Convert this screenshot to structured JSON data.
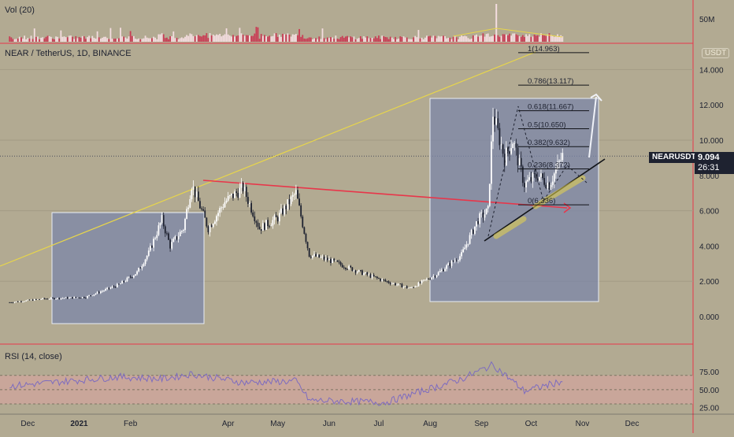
{
  "symbol_title": "NEAR / TetherUS, 1D, BINANCE",
  "volume_label": "Vol (20)",
  "volume_axis_label": "50M",
  "rsi_label": "RSI (14, close)",
  "currency_badge": "USDT",
  "price_tag": {
    "symbol": "NEARUSDT",
    "price": "9.094",
    "countdown": "26:31"
  },
  "colors": {
    "background": "#b2aa92",
    "up_candle": "#ffffff",
    "down_candle": "#1e2230",
    "resistance_line": "#e8364a",
    "trend_line": "#e8d64a",
    "box_fill": "#7b86a8",
    "rsi_line": "#7d6cc0"
  },
  "chart_data": [
    {
      "type": "candlestick",
      "title": "NEAR / TetherUS, 1D, BINANCE",
      "y_ticks": [
        "14.000",
        "12.000",
        "10.000",
        "8.000",
        "6.000",
        "4.000",
        "2.000",
        "0.000"
      ],
      "ylim": [
        -0.5,
        15.5
      ],
      "x_ticks": [
        "Dec",
        "2021",
        "Feb",
        "Apr",
        "May",
        "Jun",
        "Jul",
        "Aug",
        "Sep",
        "Oct",
        "Nov",
        "Dec"
      ],
      "last_price": 9.094,
      "approx_price_path": [
        {
          "date": "2020-11-20",
          "price": 0.8
        },
        {
          "date": "2020-12-10",
          "price": 1.0
        },
        {
          "date": "2021-01-05",
          "price": 1.1
        },
        {
          "date": "2021-01-25",
          "price": 1.8
        },
        {
          "date": "2021-02-05",
          "price": 2.5
        },
        {
          "date": "2021-02-12",
          "price": 3.6
        },
        {
          "date": "2021-02-20",
          "price": 5.5
        },
        {
          "date": "2021-02-25",
          "price": 4.0
        },
        {
          "date": "2021-03-05",
          "price": 5.0
        },
        {
          "date": "2021-03-10",
          "price": 7.5
        },
        {
          "date": "2021-03-20",
          "price": 5.0
        },
        {
          "date": "2021-03-30",
          "price": 6.5
        },
        {
          "date": "2021-04-10",
          "price": 7.3
        },
        {
          "date": "2021-04-20",
          "price": 5.0
        },
        {
          "date": "2021-05-01",
          "price": 5.6
        },
        {
          "date": "2021-05-12",
          "price": 7.0
        },
        {
          "date": "2021-05-20",
          "price": 3.5
        },
        {
          "date": "2021-06-01",
          "price": 3.2
        },
        {
          "date": "2021-06-20",
          "price": 2.5
        },
        {
          "date": "2021-07-05",
          "price": 2.0
        },
        {
          "date": "2021-07-20",
          "price": 1.6
        },
        {
          "date": "2021-08-05",
          "price": 2.4
        },
        {
          "date": "2021-08-20",
          "price": 3.5
        },
        {
          "date": "2021-08-30",
          "price": 5.5
        },
        {
          "date": "2021-09-05",
          "price": 6.0
        },
        {
          "date": "2021-09-08",
          "price": 11.5
        },
        {
          "date": "2021-09-15",
          "price": 9.0
        },
        {
          "date": "2021-09-20",
          "price": 10.0
        },
        {
          "date": "2021-09-27",
          "price": 7.5
        },
        {
          "date": "2021-10-05",
          "price": 8.0
        },
        {
          "date": "2021-10-12",
          "price": 7.5
        },
        {
          "date": "2021-10-20",
          "price": 9.094
        }
      ],
      "fibonacci_levels": [
        {
          "label": "1(14.963)",
          "value": 14.963
        },
        {
          "label": "0.786(13.117)",
          "value": 13.117
        },
        {
          "label": "0.618(11.667)",
          "value": 11.667
        },
        {
          "label": "0.5(10.650)",
          "value": 10.65
        },
        {
          "label": "0.382(9.632)",
          "value": 9.632
        },
        {
          "label": "0.236(8.372)",
          "value": 8.372
        },
        {
          "label": "0(6.336)",
          "value": 6.336
        }
      ]
    },
    {
      "type": "bar",
      "title": "Vol (20)",
      "y_ticks": [
        "50M"
      ]
    },
    {
      "type": "line",
      "title": "RSI (14, close)",
      "y_ticks": [
        "75.00",
        "50.00",
        "25.00"
      ],
      "ylim": [
        20,
        95
      ],
      "bands": [
        70,
        30
      ],
      "approx_values": [
        {
          "date": "2020-11-20",
          "value": 55
        },
        {
          "date": "2021-01-25",
          "value": 68
        },
        {
          "date": "2021-02-20",
          "value": 65
        },
        {
          "date": "2021-03-10",
          "value": 72
        },
        {
          "date": "2021-04-10",
          "value": 60
        },
        {
          "date": "2021-05-12",
          "value": 62
        },
        {
          "date": "2021-05-20",
          "value": 35
        },
        {
          "date": "2021-07-05",
          "value": 32
        },
        {
          "date": "2021-08-20",
          "value": 65
        },
        {
          "date": "2021-09-08",
          "value": 85
        },
        {
          "date": "2021-09-27",
          "value": 48
        },
        {
          "date": "2021-10-20",
          "value": 62
        }
      ]
    }
  ]
}
